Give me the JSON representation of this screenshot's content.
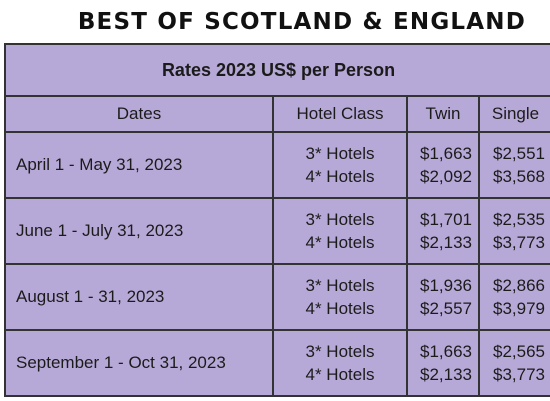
{
  "heading": "BEST OF SCOTLAND & ENGLAND",
  "table": {
    "title": "Rates 2023 US$ per Person",
    "columns": [
      "Dates",
      "Hotel Class",
      "Twin",
      "Single"
    ],
    "rows": [
      {
        "dates": "April 1 - May 31, 2023",
        "class_3": "3* Hotels",
        "class_4": "4* Hotels",
        "twin_3": "$1,663",
        "twin_4": "$2,092",
        "single_3": "$2,551",
        "single_4": "$3,568"
      },
      {
        "dates": "June 1 - July 31, 2023",
        "class_3": "3* Hotels",
        "class_4": "4* Hotels",
        "twin_3": "$1,701",
        "twin_4": "$2,133",
        "single_3": "$2,535",
        "single_4": "$3,773"
      },
      {
        "dates": "August 1 - 31, 2023",
        "class_3": "3* Hotels",
        "class_4": "4* Hotels",
        "twin_3": "$1,936",
        "twin_4": "$2,557",
        "single_3": "$2,866",
        "single_4": "$3,979"
      },
      {
        "dates": "September 1 - Oct 31, 2023",
        "class_3": "3* Hotels",
        "class_4": "4* Hotels",
        "twin_3": "$1,663",
        "twin_4": "$2,133",
        "single_3": "$2,565",
        "single_4": "$3,773"
      }
    ]
  },
  "colors": {
    "table_background": "#b7a9d7",
    "border": "#333333",
    "text": "#1b1b1b"
  }
}
